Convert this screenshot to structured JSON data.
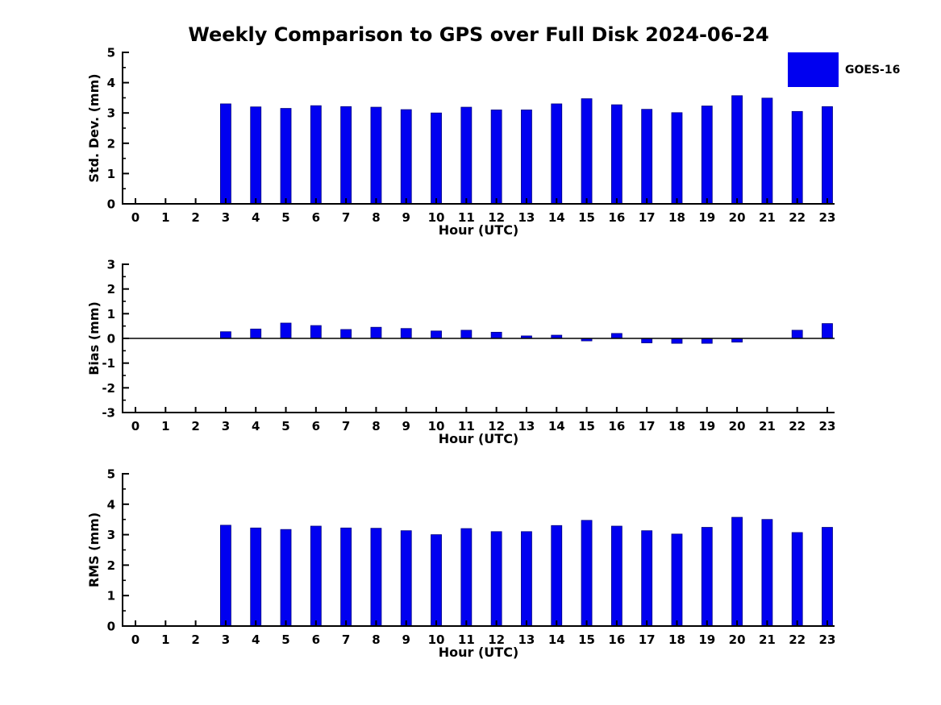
{
  "title": "Weekly Comparison to GPS over Full Disk 2024-06-24",
  "legend": {
    "label": "GOES-16",
    "color": "#0000F0"
  },
  "colors": {
    "bar_fill": "#0000F0",
    "bar_edge": "#000080",
    "axis": "#000000",
    "background": "#ffffff"
  },
  "chart_data": [
    {
      "type": "bar",
      "series_name": "GOES-16",
      "ylabel": "Std. Dev. (mm)",
      "xlabel": "Hour (UTC)",
      "ylim": [
        0,
        5
      ],
      "yticks": [
        0,
        1,
        2,
        3,
        4,
        5
      ],
      "minor_tick_step": 0.5,
      "grid": false,
      "categories": [
        "0",
        "1",
        "2",
        "3",
        "4",
        "5",
        "6",
        "7",
        "8",
        "9",
        "10",
        "11",
        "12",
        "13",
        "14",
        "15",
        "16",
        "17",
        "18",
        "19",
        "20",
        "21",
        "22",
        "23"
      ],
      "values": [
        0,
        0,
        0,
        3.3,
        3.2,
        3.15,
        3.24,
        3.21,
        3.19,
        3.11,
        3.0,
        3.19,
        3.1,
        3.1,
        3.3,
        3.47,
        3.27,
        3.12,
        3.01,
        3.23,
        3.57,
        3.49,
        3.05,
        3.21
      ]
    },
    {
      "type": "bar",
      "series_name": "GOES-16",
      "ylabel": "Bias (mm)",
      "xlabel": "Hour (UTC)",
      "ylim": [
        -3,
        3
      ],
      "yticks": [
        -3,
        -2,
        -1,
        0,
        1,
        2,
        3
      ],
      "minor_tick_step": 0.5,
      "grid": false,
      "zero_line": true,
      "categories": [
        "0",
        "1",
        "2",
        "3",
        "4",
        "5",
        "6",
        "7",
        "8",
        "9",
        "10",
        "11",
        "12",
        "13",
        "14",
        "15",
        "16",
        "17",
        "18",
        "19",
        "20",
        "21",
        "22",
        "23"
      ],
      "values": [
        0,
        0,
        0,
        0.27,
        0.38,
        0.62,
        0.52,
        0.36,
        0.45,
        0.4,
        0.3,
        0.33,
        0.25,
        0.1,
        0.13,
        -0.1,
        0.2,
        -0.18,
        -0.2,
        -0.2,
        -0.15,
        0.0,
        0.33,
        0.6
      ]
    },
    {
      "type": "bar",
      "series_name": "GOES-16",
      "ylabel": "RMS (mm)",
      "xlabel": "Hour (UTC)",
      "ylim": [
        0,
        5
      ],
      "yticks": [
        0,
        1,
        2,
        3,
        4,
        5
      ],
      "minor_tick_step": 0.5,
      "grid": false,
      "categories": [
        "0",
        "1",
        "2",
        "3",
        "4",
        "5",
        "6",
        "7",
        "8",
        "9",
        "10",
        "11",
        "12",
        "13",
        "14",
        "15",
        "16",
        "17",
        "18",
        "19",
        "20",
        "21",
        "22",
        "23"
      ],
      "values": [
        0,
        0,
        0,
        3.31,
        3.22,
        3.17,
        3.28,
        3.22,
        3.21,
        3.13,
        3.0,
        3.2,
        3.1,
        3.1,
        3.3,
        3.47,
        3.28,
        3.13,
        3.02,
        3.24,
        3.57,
        3.5,
        3.07,
        3.24
      ]
    }
  ]
}
